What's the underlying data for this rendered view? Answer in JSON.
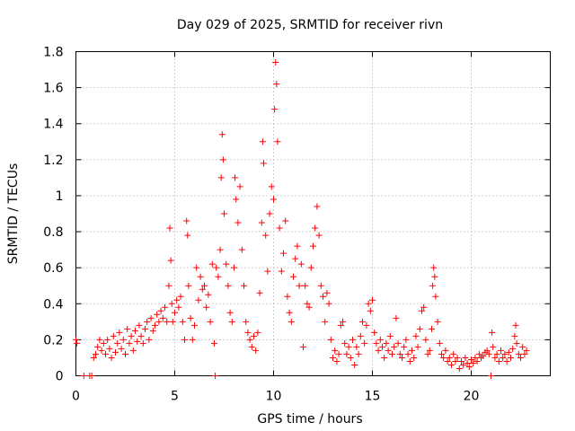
{
  "chart_data": {
    "type": "scatter",
    "title": "Day 029 of 2025, SRMTID for receiver rivn",
    "xlabel": "GPS time / hours",
    "ylabel": "SRMTID / TECUs",
    "xlim": [
      0,
      24
    ],
    "ylim": [
      0,
      1.8
    ],
    "grid": true,
    "x_ticks": [
      0,
      5,
      10,
      15,
      20
    ],
    "x_tick_labels": [
      "0",
      "5",
      "10",
      "15",
      "20"
    ],
    "y_ticks": [
      0,
      0.2,
      0.4,
      0.6,
      0.8,
      1.0,
      1.2,
      1.4,
      1.6,
      1.8
    ],
    "y_tick_labels": [
      "0",
      "0.2",
      "0.4",
      "0.6",
      "0.8",
      "1",
      "1.2",
      "1.4",
      "1.6",
      "1.8"
    ],
    "marker": "+",
    "color": "#ff0000",
    "series": [
      {
        "name": "SRMTID",
        "points": [
          [
            0.0,
            0.2
          ],
          [
            0.05,
            0.18
          ],
          [
            0.4,
            0.0
          ],
          [
            0.7,
            0.0
          ],
          [
            0.8,
            0.0
          ],
          [
            0.9,
            0.1
          ],
          [
            1.0,
            0.12
          ],
          [
            1.1,
            0.16
          ],
          [
            1.2,
            0.2
          ],
          [
            1.3,
            0.14
          ],
          [
            1.4,
            0.18
          ],
          [
            1.5,
            0.12
          ],
          [
            1.6,
            0.2
          ],
          [
            1.7,
            0.15
          ],
          [
            1.8,
            0.1
          ],
          [
            1.9,
            0.22
          ],
          [
            2.0,
            0.13
          ],
          [
            2.1,
            0.18
          ],
          [
            2.2,
            0.24
          ],
          [
            2.3,
            0.15
          ],
          [
            2.4,
            0.2
          ],
          [
            2.5,
            0.12
          ],
          [
            2.6,
            0.26
          ],
          [
            2.7,
            0.18
          ],
          [
            2.8,
            0.22
          ],
          [
            2.9,
            0.14
          ],
          [
            3.0,
            0.25
          ],
          [
            3.1,
            0.19
          ],
          [
            3.2,
            0.28
          ],
          [
            3.3,
            0.22
          ],
          [
            3.4,
            0.18
          ],
          [
            3.5,
            0.26
          ],
          [
            3.6,
            0.3
          ],
          [
            3.7,
            0.2
          ],
          [
            3.8,
            0.32
          ],
          [
            3.9,
            0.25
          ],
          [
            4.0,
            0.28
          ],
          [
            4.1,
            0.34
          ],
          [
            4.2,
            0.3
          ],
          [
            4.3,
            0.36
          ],
          [
            4.4,
            0.32
          ],
          [
            4.5,
            0.38
          ],
          [
            4.6,
            0.3
          ],
          [
            4.7,
            0.5
          ],
          [
            4.75,
            0.82
          ],
          [
            4.8,
            0.64
          ],
          [
            4.85,
            0.4
          ],
          [
            4.9,
            0.3
          ],
          [
            5.0,
            0.35
          ],
          [
            5.1,
            0.42
          ],
          [
            5.2,
            0.38
          ],
          [
            5.3,
            0.44
          ],
          [
            5.4,
            0.3
          ],
          [
            5.5,
            0.2
          ],
          [
            5.6,
            0.86
          ],
          [
            5.65,
            0.78
          ],
          [
            5.7,
            0.5
          ],
          [
            5.8,
            0.32
          ],
          [
            5.9,
            0.2
          ],
          [
            6.0,
            0.28
          ],
          [
            6.1,
            0.6
          ],
          [
            6.2,
            0.42
          ],
          [
            6.3,
            0.55
          ],
          [
            6.4,
            0.48
          ],
          [
            6.5,
            0.5
          ],
          [
            6.6,
            0.38
          ],
          [
            6.7,
            0.45
          ],
          [
            6.8,
            0.3
          ],
          [
            6.9,
            0.62
          ],
          [
            7.0,
            0.18
          ],
          [
            7.05,
            0.0
          ],
          [
            7.1,
            0.6
          ],
          [
            7.2,
            0.55
          ],
          [
            7.3,
            0.7
          ],
          [
            7.35,
            1.1
          ],
          [
            7.4,
            1.34
          ],
          [
            7.45,
            1.2
          ],
          [
            7.5,
            0.9
          ],
          [
            7.6,
            0.62
          ],
          [
            7.7,
            0.5
          ],
          [
            7.8,
            0.35
          ],
          [
            7.9,
            0.3
          ],
          [
            8.0,
            0.6
          ],
          [
            8.05,
            1.1
          ],
          [
            8.1,
            0.98
          ],
          [
            8.2,
            0.85
          ],
          [
            8.3,
            1.05
          ],
          [
            8.4,
            0.7
          ],
          [
            8.5,
            0.5
          ],
          [
            8.6,
            0.3
          ],
          [
            8.7,
            0.24
          ],
          [
            8.8,
            0.2
          ],
          [
            8.9,
            0.16
          ],
          [
            9.0,
            0.22
          ],
          [
            9.1,
            0.14
          ],
          [
            9.2,
            0.24
          ],
          [
            9.3,
            0.46
          ],
          [
            9.4,
            0.85
          ],
          [
            9.45,
            1.3
          ],
          [
            9.5,
            1.18
          ],
          [
            9.6,
            0.78
          ],
          [
            9.7,
            0.58
          ],
          [
            9.8,
            0.9
          ],
          [
            9.9,
            1.05
          ],
          [
            10.0,
            0.98
          ],
          [
            10.05,
            1.48
          ],
          [
            10.1,
            1.74
          ],
          [
            10.15,
            1.62
          ],
          [
            10.2,
            1.3
          ],
          [
            10.3,
            0.82
          ],
          [
            10.4,
            0.58
          ],
          [
            10.5,
            0.68
          ],
          [
            10.6,
            0.86
          ],
          [
            10.7,
            0.44
          ],
          [
            10.8,
            0.35
          ],
          [
            10.9,
            0.3
          ],
          [
            11.0,
            0.55
          ],
          [
            11.1,
            0.65
          ],
          [
            11.2,
            0.72
          ],
          [
            11.3,
            0.5
          ],
          [
            11.4,
            0.62
          ],
          [
            11.5,
            0.16
          ],
          [
            11.6,
            0.5
          ],
          [
            11.7,
            0.4
          ],
          [
            11.8,
            0.38
          ],
          [
            11.9,
            0.6
          ],
          [
            12.0,
            0.72
          ],
          [
            12.1,
            0.82
          ],
          [
            12.2,
            0.94
          ],
          [
            12.3,
            0.78
          ],
          [
            12.4,
            0.5
          ],
          [
            12.5,
            0.44
          ],
          [
            12.6,
            0.3
          ],
          [
            12.7,
            0.46
          ],
          [
            12.8,
            0.4
          ],
          [
            12.9,
            0.2
          ],
          [
            13.0,
            0.1
          ],
          [
            13.1,
            0.14
          ],
          [
            13.2,
            0.08
          ],
          [
            13.3,
            0.12
          ],
          [
            13.4,
            0.28
          ],
          [
            13.5,
            0.3
          ],
          [
            13.6,
            0.18
          ],
          [
            13.7,
            0.12
          ],
          [
            13.8,
            0.16
          ],
          [
            13.9,
            0.1
          ],
          [
            14.0,
            0.2
          ],
          [
            14.1,
            0.06
          ],
          [
            14.2,
            0.16
          ],
          [
            14.3,
            0.12
          ],
          [
            14.4,
            0.22
          ],
          [
            14.5,
            0.3
          ],
          [
            14.6,
            0.18
          ],
          [
            14.7,
            0.28
          ],
          [
            14.8,
            0.4
          ],
          [
            14.9,
            0.36
          ],
          [
            15.0,
            0.42
          ],
          [
            15.1,
            0.24
          ],
          [
            15.2,
            0.18
          ],
          [
            15.3,
            0.14
          ],
          [
            15.4,
            0.2
          ],
          [
            15.5,
            0.16
          ],
          [
            15.6,
            0.1
          ],
          [
            15.7,
            0.18
          ],
          [
            15.8,
            0.14
          ],
          [
            15.9,
            0.22
          ],
          [
            16.0,
            0.12
          ],
          [
            16.1,
            0.16
          ],
          [
            16.2,
            0.32
          ],
          [
            16.3,
            0.18
          ],
          [
            16.4,
            0.12
          ],
          [
            16.5,
            0.1
          ],
          [
            16.6,
            0.16
          ],
          [
            16.7,
            0.2
          ],
          [
            16.8,
            0.12
          ],
          [
            16.9,
            0.08
          ],
          [
            17.0,
            0.14
          ],
          [
            17.1,
            0.1
          ],
          [
            17.2,
            0.22
          ],
          [
            17.3,
            0.16
          ],
          [
            17.4,
            0.26
          ],
          [
            17.5,
            0.36
          ],
          [
            17.6,
            0.38
          ],
          [
            17.7,
            0.2
          ],
          [
            17.8,
            0.12
          ],
          [
            17.9,
            0.14
          ],
          [
            18.0,
            0.26
          ],
          [
            18.05,
            0.5
          ],
          [
            18.1,
            0.6
          ],
          [
            18.15,
            0.55
          ],
          [
            18.2,
            0.44
          ],
          [
            18.3,
            0.3
          ],
          [
            18.4,
            0.18
          ],
          [
            18.5,
            0.12
          ],
          [
            18.6,
            0.1
          ],
          [
            18.7,
            0.14
          ],
          [
            18.8,
            0.08
          ],
          [
            18.9,
            0.1
          ],
          [
            19.0,
            0.06
          ],
          [
            19.1,
            0.12
          ],
          [
            19.2,
            0.08
          ],
          [
            19.3,
            0.1
          ],
          [
            19.4,
            0.04
          ],
          [
            19.5,
            0.08
          ],
          [
            19.6,
            0.06
          ],
          [
            19.7,
            0.1
          ],
          [
            19.8,
            0.07
          ],
          [
            19.9,
            0.05
          ],
          [
            20.0,
            0.09
          ],
          [
            20.1,
            0.07
          ],
          [
            20.2,
            0.1
          ],
          [
            20.3,
            0.08
          ],
          [
            20.4,
            0.12
          ],
          [
            20.5,
            0.1
          ],
          [
            20.6,
            0.11
          ],
          [
            20.7,
            0.13
          ],
          [
            20.8,
            0.14
          ],
          [
            20.9,
            0.12
          ],
          [
            21.0,
            0.0
          ],
          [
            21.05,
            0.24
          ],
          [
            21.1,
            0.16
          ],
          [
            21.2,
            0.1
          ],
          [
            21.3,
            0.12
          ],
          [
            21.4,
            0.08
          ],
          [
            21.5,
            0.14
          ],
          [
            21.6,
            0.1
          ],
          [
            21.7,
            0.12
          ],
          [
            21.8,
            0.08
          ],
          [
            21.9,
            0.13
          ],
          [
            22.0,
            0.1
          ],
          [
            22.1,
            0.15
          ],
          [
            22.2,
            0.22
          ],
          [
            22.25,
            0.28
          ],
          [
            22.3,
            0.18
          ],
          [
            22.4,
            0.12
          ],
          [
            22.5,
            0.1
          ],
          [
            22.6,
            0.16
          ],
          [
            22.7,
            0.12
          ],
          [
            22.8,
            0.14
          ]
        ]
      }
    ]
  }
}
